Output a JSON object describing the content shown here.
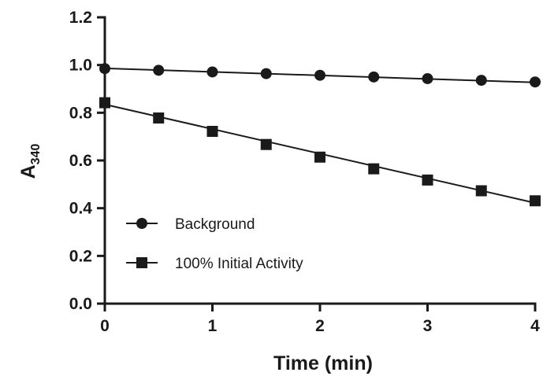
{
  "chart_data": {
    "type": "line",
    "xlabel": "Time (min)",
    "ylabel": {
      "base": "A",
      "subscript": "340"
    },
    "xlim": [
      0,
      4
    ],
    "ylim": [
      0,
      1.2
    ],
    "xticks": [
      "0",
      "1",
      "2",
      "3",
      "4"
    ],
    "yticks": [
      "0.0",
      "0.2",
      "0.4",
      "0.6",
      "0.8",
      "1.0",
      "1.2"
    ],
    "grid": false,
    "legend_position": "bottom-left",
    "series": [
      {
        "name": "Background",
        "marker": "circle",
        "color": "#1a1a1a",
        "x": [
          0,
          0.5,
          1,
          1.5,
          2,
          2.5,
          3,
          3.5,
          4
        ],
        "y": [
          0.985,
          0.978,
          0.971,
          0.964,
          0.957,
          0.95,
          0.943,
          0.936,
          0.929
        ],
        "fit": {
          "x": [
            0,
            4
          ],
          "y": [
            0.986,
            0.927
          ]
        }
      },
      {
        "name": "100% Initial Activity",
        "marker": "square",
        "color": "#1a1a1a",
        "x": [
          0,
          0.5,
          1,
          1.5,
          2,
          2.5,
          3,
          3.5,
          4
        ],
        "y": [
          0.842,
          0.778,
          0.722,
          0.667,
          0.614,
          0.565,
          0.518,
          0.473,
          0.431
        ],
        "fit": {
          "x": [
            0,
            4
          ],
          "y": [
            0.835,
            0.422
          ]
        }
      }
    ]
  }
}
